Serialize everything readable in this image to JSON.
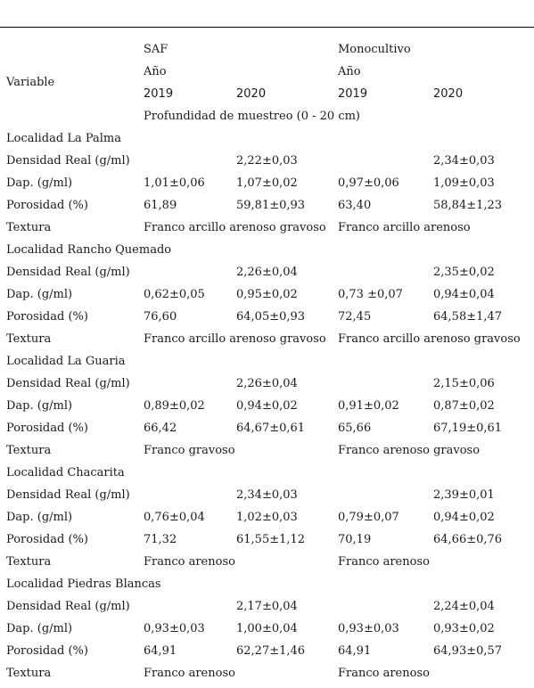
{
  "header": {
    "variable": "Variable",
    "saf": "SAF",
    "mono": "Monocultivo",
    "anio_saf": "Año",
    "anio_mono": "Año",
    "years": [
      "2019",
      "2020",
      "2019",
      "2020"
    ],
    "depth": "Profundidad de muestreo (0 - 20 cm)"
  },
  "localities": [
    {
      "name": "Localidad La Palma",
      "rows": [
        {
          "label": "Densidad Real (g/ml)",
          "values": [
            "",
            "2,22±0,03",
            "",
            "2,34±0,03"
          ]
        },
        {
          "label": "Dap. (g/ml)",
          "values": [
            "1,01±0,06",
            "1,07±0,02",
            "0,97±0,06",
            "1,09±0,03"
          ]
        },
        {
          "label": "Porosidad (%)",
          "values": [
            "61,89",
            "59,81±0,93",
            "63,40",
            "58,84±1,23"
          ]
        }
      ],
      "texture": {
        "label": "Textura",
        "saf": "Franco arcillo arenoso gravoso",
        "mono": "Franco arcillo arenoso"
      }
    },
    {
      "name": "Localidad Rancho Quemado",
      "rows": [
        {
          "label": "Densidad Real (g/ml)",
          "values": [
            "",
            "2,26±0,04",
            "",
            "2,35±0,02"
          ]
        },
        {
          "label": "Dap. (g/ml)",
          "values": [
            "0,62±0,05",
            "0,95±0,02",
            "0,73 ±0,07",
            "0,94±0,04"
          ]
        },
        {
          "label": "Porosidad (%)",
          "values": [
            "76,60",
            "64,05±0,93",
            "72,45",
            "64,58±1,47"
          ]
        }
      ],
      "texture": {
        "label": "Textura",
        "saf": "Franco arcillo arenoso gravoso",
        "mono": "Franco arcillo arenoso gravoso"
      }
    },
    {
      "name": "Localidad La Guaria",
      "rows": [
        {
          "label": "Densidad Real (g/ml)",
          "values": [
            "",
            "2,26±0,04",
            "",
            "2,15±0,06"
          ]
        },
        {
          "label": "Dap. (g/ml)",
          "values": [
            "0,89±0,02",
            "0,94±0,02",
            "0,91±0,02",
            "0,87±0,02"
          ]
        },
        {
          "label": "Porosidad (%)",
          "values": [
            "66,42",
            "64,67±0,61",
            "65,66",
            "67,19±0,61"
          ]
        }
      ],
      "texture": {
        "label": "Textura",
        "saf": "Franco gravoso",
        "mono": "Franco arenoso gravoso"
      }
    },
    {
      "name": "Localidad Chacarita",
      "rows": [
        {
          "label": "Densidad Real (g/ml)",
          "values": [
            "",
            "2,34±0,03",
            "",
            "2,39±0,01"
          ]
        },
        {
          "label": "Dap. (g/ml)",
          "values": [
            "0,76±0,04",
            "1,02±0,03",
            "0,79±0,07",
            "0,94±0,02"
          ]
        },
        {
          "label": "Porosidad (%)",
          "values": [
            "71,32",
            "61,55±1,12",
            "70,19",
            "64,66±0,76"
          ]
        }
      ],
      "texture": {
        "label": "Textura",
        "saf": "Franco arenoso",
        "mono": "Franco arenoso"
      }
    },
    {
      "name": "Localidad Piedras Blancas",
      "rows": [
        {
          "label": "Densidad Real (g/ml)",
          "values": [
            "",
            "2,17±0,04",
            "",
            "2,24±0,04"
          ]
        },
        {
          "label": "Dap. (g/ml)",
          "values": [
            "0,93±0,03",
            "1,00±0,04",
            "0,93±0,03",
            "0,93±0,02"
          ]
        },
        {
          "label": "Porosidad (%)",
          "values": [
            "64,91",
            "62,27±1,46",
            "64,91",
            "64,93±0,57"
          ]
        }
      ],
      "texture": {
        "label": "Textura",
        "saf": "Franco arenoso",
        "mono": "Franco arenoso"
      }
    }
  ]
}
